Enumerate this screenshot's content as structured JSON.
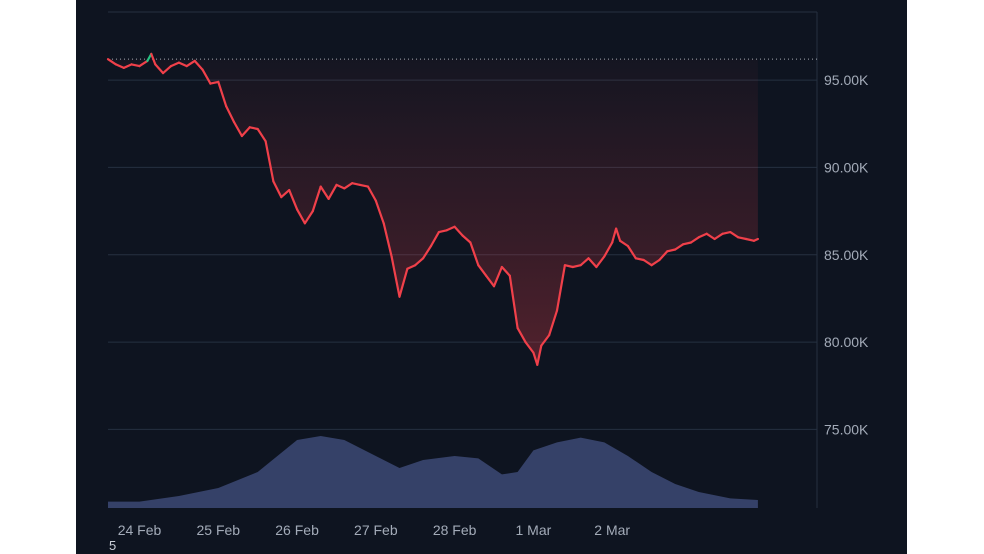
{
  "chart_data": {
    "type": "line",
    "title": "",
    "xlabel": "",
    "ylabel": "",
    "x_tick_labels": [
      "24 Feb",
      "25 Feb",
      "26 Feb",
      "27 Feb",
      "28 Feb",
      "1 Mar",
      "2 Mar"
    ],
    "y_tick_labels": [
      "95.00K",
      "90.00K",
      "85.00K",
      "80.00K",
      "75.00K"
    ],
    "y_ticks": [
      95000,
      90000,
      85000,
      80000,
      75000
    ],
    "ylim": [
      70500,
      98900
    ],
    "x_range_days": [
      -0.4,
      8.6
    ],
    "reference_price": 96200,
    "grid": true,
    "colors": {
      "up": "#26c281",
      "down": "#f0404a",
      "volume": "#3a4670",
      "grid": "#263040",
      "background": "#0e1420"
    },
    "series": [
      {
        "values": [
          [
            -0.4,
            96200
          ],
          [
            -0.3,
            95900
          ],
          [
            -0.2,
            95700
          ],
          [
            -0.1,
            95900
          ],
          [
            0.0,
            95800
          ],
          [
            0.1,
            96100
          ],
          [
            0.15,
            96500
          ],
          [
            0.2,
            95900
          ],
          [
            0.3,
            95400
          ],
          [
            0.4,
            95800
          ],
          [
            0.5,
            96000
          ],
          [
            0.6,
            95800
          ],
          [
            0.7,
            96100
          ],
          [
            0.8,
            95600
          ],
          [
            0.9,
            94800
          ],
          [
            1.0,
            94900
          ],
          [
            1.1,
            93500
          ],
          [
            1.2,
            92600
          ],
          [
            1.3,
            91800
          ],
          [
            1.4,
            92300
          ],
          [
            1.5,
            92200
          ],
          [
            1.6,
            91500
          ],
          [
            1.7,
            89200
          ],
          [
            1.8,
            88300
          ],
          [
            1.9,
            88700
          ],
          [
            2.0,
            87600
          ],
          [
            2.1,
            86800
          ],
          [
            2.2,
            87500
          ],
          [
            2.3,
            88900
          ],
          [
            2.4,
            88200
          ],
          [
            2.5,
            89000
          ],
          [
            2.6,
            88800
          ],
          [
            2.7,
            89100
          ],
          [
            2.8,
            89000
          ],
          [
            2.9,
            88900
          ],
          [
            3.0,
            88100
          ],
          [
            3.1,
            86800
          ],
          [
            3.2,
            84900
          ],
          [
            3.3,
            82600
          ],
          [
            3.4,
            84200
          ],
          [
            3.5,
            84400
          ],
          [
            3.6,
            84800
          ],
          [
            3.7,
            85500
          ],
          [
            3.8,
            86300
          ],
          [
            3.9,
            86400
          ],
          [
            4.0,
            86600
          ],
          [
            4.1,
            86100
          ],
          [
            4.2,
            85700
          ],
          [
            4.3,
            84400
          ],
          [
            4.4,
            83800
          ],
          [
            4.5,
            83200
          ],
          [
            4.6,
            84300
          ],
          [
            4.7,
            83800
          ],
          [
            4.8,
            80800
          ],
          [
            4.9,
            80000
          ],
          [
            5.0,
            79400
          ],
          [
            5.05,
            78700
          ],
          [
            5.1,
            79800
          ],
          [
            5.2,
            80400
          ],
          [
            5.3,
            81800
          ],
          [
            5.4,
            84400
          ],
          [
            5.5,
            84300
          ],
          [
            5.6,
            84400
          ],
          [
            5.7,
            84800
          ],
          [
            5.8,
            84300
          ],
          [
            5.9,
            84900
          ],
          [
            6.0,
            85700
          ],
          [
            6.05,
            86500
          ],
          [
            6.1,
            85800
          ],
          [
            6.2,
            85500
          ],
          [
            6.3,
            84800
          ],
          [
            6.4,
            84700
          ],
          [
            6.5,
            84400
          ],
          [
            6.6,
            84700
          ],
          [
            6.7,
            85200
          ],
          [
            6.8,
            85300
          ],
          [
            6.9,
            85600
          ],
          [
            7.0,
            85700
          ],
          [
            7.1,
            86000
          ],
          [
            7.2,
            86200
          ],
          [
            7.3,
            85900
          ],
          [
            7.4,
            86200
          ],
          [
            7.5,
            86300
          ],
          [
            7.6,
            86000
          ],
          [
            7.7,
            85900
          ],
          [
            7.8,
            85800
          ],
          [
            7.85,
            85900
          ]
        ]
      }
    ],
    "volume": [
      [
        -0.4,
        0.08
      ],
      [
        0.0,
        0.08
      ],
      [
        0.5,
        0.15
      ],
      [
        1.0,
        0.25
      ],
      [
        1.5,
        0.45
      ],
      [
        2.0,
        0.85
      ],
      [
        2.3,
        0.9
      ],
      [
        2.6,
        0.85
      ],
      [
        3.0,
        0.65
      ],
      [
        3.3,
        0.5
      ],
      [
        3.6,
        0.6
      ],
      [
        4.0,
        0.65
      ],
      [
        4.3,
        0.62
      ],
      [
        4.6,
        0.42
      ],
      [
        4.8,
        0.45
      ],
      [
        5.0,
        0.72
      ],
      [
        5.3,
        0.82
      ],
      [
        5.6,
        0.88
      ],
      [
        5.9,
        0.82
      ],
      [
        6.2,
        0.65
      ],
      [
        6.5,
        0.45
      ],
      [
        6.8,
        0.3
      ],
      [
        7.1,
        0.2
      ],
      [
        7.5,
        0.12
      ],
      [
        7.85,
        0.1
      ]
    ]
  },
  "corner_label": "5"
}
